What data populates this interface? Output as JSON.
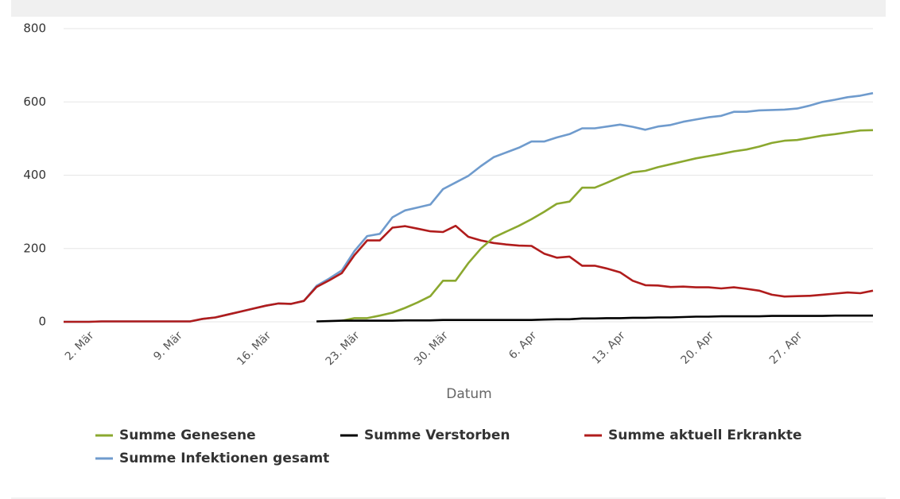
{
  "chart_data": {
    "type": "line",
    "x_label": "Datum",
    "categories": [
      null,
      null,
      "2. Mär",
      null,
      null,
      null,
      null,
      null,
      null,
      "9. Mär",
      null,
      null,
      null,
      null,
      null,
      null,
      "16. Mär",
      null,
      null,
      null,
      null,
      null,
      null,
      "23. Mär",
      null,
      null,
      null,
      null,
      null,
      null,
      "30. Mär",
      null,
      null,
      null,
      null,
      null,
      null,
      "6. Apr",
      null,
      null,
      null,
      null,
      null,
      null,
      "13. Apr",
      null,
      null,
      null,
      null,
      null,
      null,
      "20. Apr",
      null,
      null,
      null,
      null,
      null,
      null,
      "27. Apr",
      null,
      null,
      null,
      null,
      null,
      null
    ],
    "series": [
      {
        "name": "Summe Genesene",
        "color": "#8ba82f",
        "values": [
          null,
          null,
          null,
          null,
          null,
          null,
          null,
          null,
          null,
          null,
          null,
          null,
          null,
          null,
          null,
          null,
          null,
          null,
          null,
          null,
          null,
          null,
          3,
          10,
          10,
          17,
          25,
          38,
          53,
          70,
          112,
          112,
          160,
          200,
          230,
          246,
          262,
          280,
          300,
          322,
          328,
          366,
          366,
          380,
          395,
          408,
          412,
          422,
          430,
          438,
          446,
          452,
          458,
          465,
          470,
          478,
          488,
          494,
          496,
          502,
          508,
          512,
          517,
          522,
          523
        ]
      },
      {
        "name": "Summe Verstorben",
        "color": "#000000",
        "values": [
          null,
          null,
          null,
          null,
          null,
          null,
          null,
          null,
          null,
          null,
          null,
          null,
          null,
          null,
          null,
          null,
          null,
          null,
          null,
          null,
          1,
          2,
          3,
          3,
          3,
          3,
          3,
          4,
          4,
          4,
          5,
          5,
          5,
          5,
          5,
          5,
          5,
          5,
          6,
          7,
          7,
          9,
          9,
          10,
          10,
          11,
          11,
          12,
          12,
          13,
          14,
          14,
          15,
          15,
          15,
          15,
          16,
          16,
          16,
          16,
          16,
          17,
          17,
          17,
          17
        ]
      },
      {
        "name": "Summe aktuell Erkrankte",
        "color": "#b01c1c",
        "values": [
          0,
          0,
          0,
          1,
          1,
          1,
          1,
          1,
          1,
          1,
          1,
          8,
          12,
          20,
          28,
          36,
          44,
          50,
          49,
          57,
          95,
          113,
          133,
          182,
          222,
          222,
          257,
          261,
          254,
          247,
          245,
          262,
          232,
          222,
          215,
          211,
          208,
          207,
          186,
          175,
          178,
          153,
          153,
          145,
          135,
          112,
          100,
          99,
          95,
          96,
          94,
          94,
          91,
          94,
          90,
          85,
          74,
          69,
          70,
          71,
          74,
          77,
          80,
          78,
          85
        ]
      },
      {
        "name": "Summe Infektionen gesamt",
        "color": "#6f9bcd",
        "values": [
          0,
          0,
          0,
          1,
          1,
          1,
          1,
          1,
          1,
          1,
          1,
          8,
          12,
          20,
          28,
          36,
          44,
          50,
          49,
          57,
          98,
          118,
          140,
          193,
          234,
          240,
          285,
          304,
          312,
          320,
          362,
          380,
          398,
          425,
          449,
          462,
          475,
          492,
          492,
          503,
          512,
          528,
          528,
          533,
          538,
          532,
          524,
          533,
          537,
          546,
          552,
          558,
          562,
          573,
          573,
          577,
          578,
          579,
          582,
          590,
          600,
          606,
          613,
          617,
          624
        ]
      }
    ],
    "ylim": [
      0,
      800
    ],
    "yticks": [
      0,
      200,
      400,
      600,
      800
    ],
    "grid": true
  }
}
